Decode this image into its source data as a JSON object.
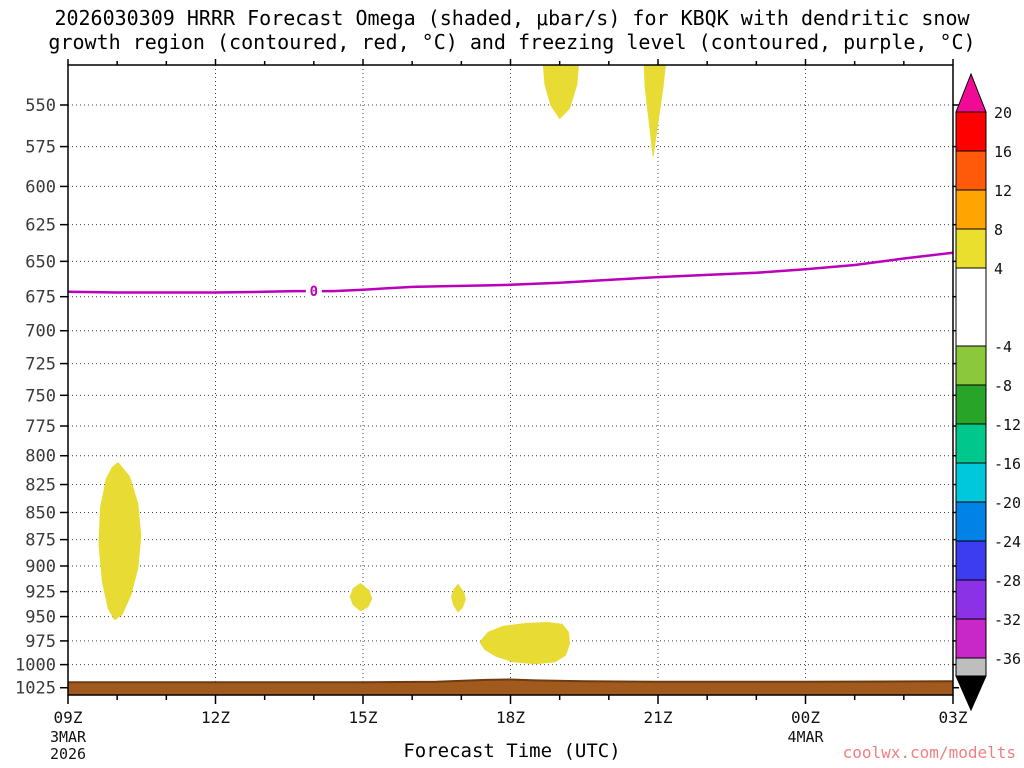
{
  "page": {
    "watermark": "coolwx.com/modelts"
  },
  "chart_data": {
    "type": "area",
    "title_line1": "2026030309 HRRR Forecast Omega (shaded, μbar/s) for KBQK with dendritic snow",
    "title_line2": "growth region (contoured, red, °C) and freezing level (contoured, purple, °C)",
    "xlabel": "Forecast Time (UTC)",
    "x_range_hours": [
      9,
      27
    ],
    "x_ticks": [
      {
        "hour": 9,
        "label": "09Z"
      },
      {
        "hour": 12,
        "label": "12Z"
      },
      {
        "hour": 15,
        "label": "15Z"
      },
      {
        "hour": 18,
        "label": "18Z"
      },
      {
        "hour": 21,
        "label": "21Z"
      },
      {
        "hour": 24,
        "label": "00Z"
      },
      {
        "hour": 27,
        "label": "03Z"
      }
    ],
    "x_sub_labels": [
      {
        "hour": 9,
        "lines": [
          "3MAR",
          "2026"
        ]
      },
      {
        "hour": 24,
        "lines": [
          "4MAR"
        ]
      }
    ],
    "grid_hours": [
      12,
      15,
      18,
      21,
      24
    ],
    "pressure_ticks": [
      550,
      575,
      600,
      625,
      650,
      675,
      700,
      725,
      750,
      775,
      800,
      825,
      850,
      875,
      900,
      925,
      950,
      975,
      1000,
      1025
    ],
    "pressure_range": [
      527,
      1033
    ],
    "shade_color": "#e8dc34",
    "shade_value_range": "4 to 8 μbar/s",
    "freezing_level": {
      "color": "#bb00bb",
      "label": "0",
      "label_hour": 14,
      "label_pressure": 671,
      "points": [
        [
          9,
          671.5
        ],
        [
          10,
          672
        ],
        [
          11,
          672
        ],
        [
          12,
          672
        ],
        [
          13,
          671.5
        ],
        [
          13.6,
          671
        ],
        [
          14.4,
          671
        ],
        [
          15,
          670
        ],
        [
          16,
          668
        ],
        [
          16.6,
          667.5
        ],
        [
          17.4,
          667
        ],
        [
          18,
          666.5
        ],
        [
          19,
          665
        ],
        [
          20,
          663
        ],
        [
          21,
          661
        ],
        [
          22,
          659.5
        ],
        [
          23,
          658
        ],
        [
          24,
          655.5
        ],
        [
          25,
          652.5
        ],
        [
          26,
          648
        ],
        [
          27,
          644
        ]
      ]
    },
    "omega_regions": [
      {
        "name": "upper-blob-1",
        "value_range": "4-8",
        "points": [
          [
            18.67,
            527
          ],
          [
            19.38,
            527
          ],
          [
            19.35,
            538
          ],
          [
            19.2,
            552
          ],
          [
            19.0,
            558
          ],
          [
            18.82,
            550
          ],
          [
            18.7,
            538
          ]
        ]
      },
      {
        "name": "upper-blob-2",
        "value_range": "4-8",
        "points": [
          [
            20.72,
            527
          ],
          [
            21.15,
            527
          ],
          [
            21.1,
            540
          ],
          [
            21.0,
            560
          ],
          [
            20.9,
            581
          ],
          [
            20.82,
            560
          ],
          [
            20.74,
            540
          ]
        ]
      },
      {
        "name": "low-level-blob-10z",
        "value_range": "4-8",
        "points": [
          [
            10.02,
            806
          ],
          [
            10.25,
            818
          ],
          [
            10.42,
            842
          ],
          [
            10.48,
            872
          ],
          [
            10.42,
            902
          ],
          [
            10.28,
            928
          ],
          [
            10.1,
            948
          ],
          [
            9.95,
            953
          ],
          [
            9.82,
            942
          ],
          [
            9.7,
            915
          ],
          [
            9.63,
            880
          ],
          [
            9.66,
            846
          ],
          [
            9.78,
            820
          ],
          [
            9.9,
            810
          ]
        ]
      },
      {
        "name": "small-blob-15z",
        "value_range": "4-8",
        "points": [
          [
            14.95,
            917
          ],
          [
            15.12,
            924
          ],
          [
            15.18,
            932
          ],
          [
            15.1,
            940
          ],
          [
            14.95,
            944
          ],
          [
            14.8,
            938
          ],
          [
            14.74,
            930
          ],
          [
            14.8,
            922
          ]
        ]
      },
      {
        "name": "small-blob-17z",
        "value_range": "4-8",
        "points": [
          [
            16.93,
            918
          ],
          [
            17.05,
            926
          ],
          [
            17.08,
            933
          ],
          [
            17.02,
            941
          ],
          [
            16.93,
            945
          ],
          [
            16.84,
            938
          ],
          [
            16.8,
            930
          ],
          [
            16.85,
            923
          ]
        ]
      },
      {
        "name": "near-surface-blob-18z",
        "value_range": "4-8",
        "points": [
          [
            17.38,
            976
          ],
          [
            17.55,
            966
          ],
          [
            17.85,
            960
          ],
          [
            18.3,
            957
          ],
          [
            18.75,
            956
          ],
          [
            19.05,
            958
          ],
          [
            19.18,
            966
          ],
          [
            19.2,
            978
          ],
          [
            19.12,
            990
          ],
          [
            18.9,
            997
          ],
          [
            18.5,
            999
          ],
          [
            18.05,
            997
          ],
          [
            17.7,
            991
          ],
          [
            17.48,
            984
          ]
        ]
      }
    ],
    "terrain": {
      "color": "#a05a1e",
      "edge_color": "#6e3a0e",
      "surface": [
        [
          9,
          1019
        ],
        [
          12,
          1019
        ],
        [
          15,
          1019
        ],
        [
          16.5,
          1018.5
        ],
        [
          17.5,
          1016.5
        ],
        [
          18,
          1016
        ],
        [
          18.5,
          1017
        ],
        [
          19.5,
          1018
        ],
        [
          21,
          1018.5
        ],
        [
          24,
          1018.5
        ],
        [
          27,
          1018
        ]
      ]
    },
    "colorbar": {
      "labels": [
        "20",
        "16",
        "12",
        "8",
        "4",
        "-4",
        "-8",
        "-12",
        "-16",
        "-20",
        "-24",
        "-28",
        "-32",
        "-36"
      ],
      "segments": [
        {
          "units": 4,
          "color": "#ff0000"
        },
        {
          "units": 4,
          "color": "#ff5a0a"
        },
        {
          "units": 4,
          "color": "#ffa400"
        },
        {
          "units": 4,
          "color": "#ebdf2e"
        },
        {
          "units": 8,
          "color": "#ffffff"
        },
        {
          "units": 4,
          "color": "#8cc83c"
        },
        {
          "units": 4,
          "color": "#28a428"
        },
        {
          "units": 4,
          "color": "#00c88c"
        },
        {
          "units": 4,
          "color": "#00c8dc"
        },
        {
          "units": 4,
          "color": "#0082e6"
        },
        {
          "units": 4,
          "color": "#3c3cf0"
        },
        {
          "units": 4,
          "color": "#8c32e6"
        },
        {
          "units": 4,
          "color": "#c828c8"
        }
      ],
      "above_color": "#f00a96",
      "below_gray": "#bebebe",
      "below_color": "#000000"
    }
  }
}
